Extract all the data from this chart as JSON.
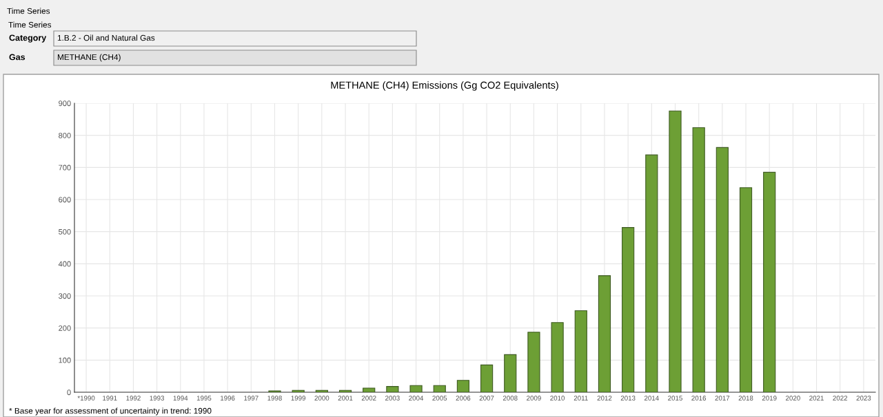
{
  "chart_data": {
    "type": "bar",
    "title": "METHANE (CH4) Emissions (Gg CO2 Equivalents)",
    "categories": [
      "*1990",
      "1991",
      "1992",
      "1993",
      "1994",
      "1995",
      "1996",
      "1997",
      "1998",
      "1999",
      "2000",
      "2001",
      "2002",
      "2003",
      "2004",
      "2005",
      "2006",
      "2007",
      "2008",
      "2009",
      "2010",
      "2011",
      "2012",
      "2013",
      "2014",
      "2015",
      "2016",
      "2017",
      "2018",
      "2019",
      "2020",
      "2021",
      "2022",
      "2023"
    ],
    "values": [
      null,
      null,
      null,
      null,
      null,
      null,
      null,
      null,
      4,
      6,
      6,
      6,
      13,
      18,
      21,
      21,
      37,
      85,
      117,
      187,
      217,
      254,
      363,
      513,
      739,
      876,
      824,
      762,
      637,
      685,
      null,
      null,
      null,
      null
    ],
    "color": "#6d9f35",
    "ylim": [
      0,
      900
    ],
    "yticks": [
      0,
      100,
      200,
      300,
      400,
      500,
      600,
      700,
      800,
      900
    ],
    "grid": true,
    "annotations": [
      "Time Series",
      "Time Series",
      "Category",
      "1.B.2 - Oil and Natural Gas",
      "Gas",
      "METHANE (CH4)",
      "* Base year for assessment of uncertainty in trend: 1990"
    ]
  }
}
